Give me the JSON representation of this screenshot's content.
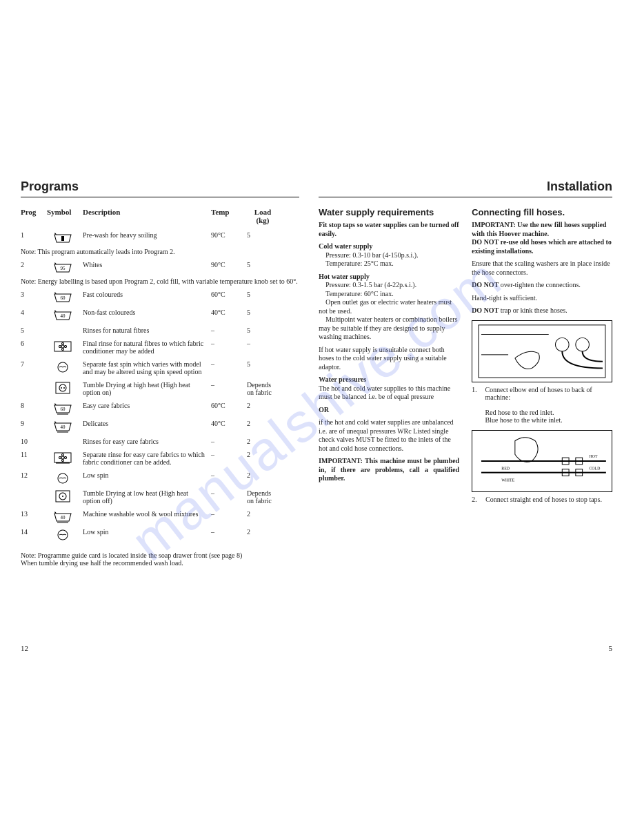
{
  "watermark": "manualshive.com",
  "left": {
    "title": "Programs",
    "head": {
      "prog": "Prog",
      "symbol": "Symbol",
      "desc": "Description",
      "temp": "Temp",
      "load": "Load (kg)"
    },
    "rows": [
      {
        "n": "1",
        "sym": "prewash",
        "desc": "Pre-wash for heavy soiling",
        "temp": "90°C",
        "load": "5"
      },
      {
        "note": "Note: This program automatically leads into Program 2."
      },
      {
        "n": "2",
        "sym": "tub95",
        "desc": "Whites",
        "temp": "90°C",
        "load": "5"
      },
      {
        "note": "Note: Energy labelling is based upon Program 2, cold fill, with variable temperature knob set to 60°."
      },
      {
        "n": "3",
        "sym": "tub60",
        "desc": "Fast coloureds",
        "temp": "60°C",
        "load": "5"
      },
      {
        "n": "4",
        "sym": "tub40",
        "desc": "Non-fast coloureds",
        "temp": "40°C",
        "load": "5"
      },
      {
        "n": "5",
        "sym": "",
        "desc": "Rinses for natural fibres",
        "temp": "–",
        "load": "5"
      },
      {
        "n": "6",
        "sym": "flower",
        "desc": "Final rinse for natural fibres to which fabric conditioner may be added",
        "temp": "–",
        "load": "–"
      },
      {
        "n": "7",
        "sym": "spin",
        "desc": "Separate fast spin which varies with model and may be altered using spin speed option",
        "temp": "–",
        "load": "5"
      },
      {
        "n": "",
        "sym": "dryhigh",
        "desc": "Tumble Drying at high heat (High heat option on)",
        "temp": "–",
        "load": "Depends on fabric"
      },
      {
        "n": "8",
        "sym": "tub60u",
        "desc": "Easy care fabrics",
        "temp": "60°C",
        "load": "2"
      },
      {
        "n": "9",
        "sym": "tub40u",
        "desc": "Delicates",
        "temp": "40°C",
        "load": "2"
      },
      {
        "n": "10",
        "sym": "",
        "desc": "Rinses for easy care fabrics",
        "temp": "–",
        "load": "2"
      },
      {
        "n": "11",
        "sym": "floweru",
        "desc": "Separate rinse for easy care fabrics to which fabric conditioner can be added.",
        "temp": "–",
        "load": "2"
      },
      {
        "n": "12",
        "sym": "spin",
        "desc": "Low spin",
        "temp": "–",
        "load": "2"
      },
      {
        "n": "",
        "sym": "drylow",
        "desc": "Tumble Drying at low heat (High heat option off)",
        "temp": "–",
        "load": "Depends on fabric"
      },
      {
        "n": "13",
        "sym": "tub40u",
        "desc": "Machine washable wool & wool mixtures",
        "temp": "–",
        "load": "2"
      },
      {
        "n": "14",
        "sym": "spin",
        "desc": "Low spin",
        "temp": "–",
        "load": "2"
      }
    ],
    "foot1": "Note: Programme guide card is located inside the soap drawer front (see page 8)",
    "foot2": "When tumble drying use half the recommended wash load.",
    "pagenum": "12"
  },
  "right": {
    "title": "Installation",
    "col1": {
      "h": "Water supply requirements",
      "p1": "Fit stop taps so water supplies can be turned off easily.",
      "cold_h": "Cold water supply",
      "cold1": "Pressure: 0.3-10 bar (4-150p.s.i.).",
      "cold2": "Temperature: 25°C max.",
      "hot_h": "Hot water supply",
      "hot1": "Pressure: 0.3-1.5 bar (4-22p.s.i.).",
      "hot2": "Temperature: 60°C inax.",
      "hot3": "Open outlet gas or electric water heaters must not be used.",
      "hot4": "Multipoint water heaters or combination boilers may be suitable if they are designed to supply washing machines.",
      "p2": "If hot water supply is unsuitable connect both hoses to the cold water supply using a suitable adaptor.",
      "wp_h": "Water pressures",
      "wp1": "The hot and cold water supplies to this machine must be balanced i.e. be of equal pressure",
      "or": "OR",
      "wp2": "if the hot and cold water supplies are unbalanced i.e. are of unequal pressures WRc Listed single check valves MUST be fitted to the inlets of the hot and cold hose connections.",
      "imp": "IMPORTANT: This machine must be plumbed in, if there are problems, call a qualified plumber."
    },
    "col2": {
      "h": "Connecting fill hoses.",
      "imp1a": "IMPORTANT: Use the new fill hoses supplied with this Hoover machine.",
      "imp1b": "DO NOT re-use old hoses which are attached to existing installations.",
      "p1": "Ensure that the scaling washers are in place inside the hose connectors.",
      "p2a": "DO NOT",
      "p2b": " over-tighten the connections.",
      "p3": "Hand-tight is sufficient.",
      "p4a": "DO NOT",
      "p4b": "  trap or kink these hoses.",
      "cap1n": "1.",
      "cap1": "Connect elbow end of hoses to back of machine:",
      "cap1r": "Red hose to the red inlet.",
      "cap1b": "Blue hose to the white inlet.",
      "cap2n": "2.",
      "cap2": "Connect straight end of hoses to stop taps."
    },
    "pagenum": "5"
  }
}
